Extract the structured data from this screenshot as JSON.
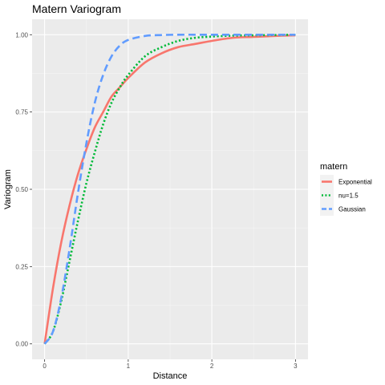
{
  "chart_data": {
    "type": "line",
    "title": "Matern Variogram",
    "xlabel": "Distance",
    "ylabel": "Variogram",
    "xlim": [
      -0.15,
      3.15
    ],
    "ylim": [
      -0.05,
      1.05
    ],
    "x_ticks": [
      {
        "value": 0,
        "label": "0"
      },
      {
        "value": 1,
        "label": "1"
      },
      {
        "value": 2,
        "label": "2"
      },
      {
        "value": 3,
        "label": "3"
      }
    ],
    "y_ticks": [
      {
        "value": 0,
        "label": "0.00"
      },
      {
        "value": 0.25,
        "label": "0.25"
      },
      {
        "value": 0.5,
        "label": "0.50"
      },
      {
        "value": 0.75,
        "label": "0.75"
      },
      {
        "value": 1,
        "label": "1.00"
      }
    ],
    "grid": true,
    "legend": {
      "title": "matern",
      "position": "right"
    },
    "x": [
      0,
      0.1,
      0.2,
      0.3,
      0.4,
      0.5,
      0.6,
      0.7,
      0.8,
      0.9,
      1.0,
      1.2,
      1.4,
      1.6,
      1.8,
      2.0,
      2.25,
      2.5,
      2.75,
      3.0
    ],
    "series": [
      {
        "name": "Exponential",
        "color": "#F8766D",
        "dash": "solid",
        "values": [
          0.0,
          0.18,
          0.33,
          0.45,
          0.55,
          0.63,
          0.7,
          0.75,
          0.8,
          0.83,
          0.86,
          0.91,
          0.94,
          0.96,
          0.97,
          0.98,
          0.99,
          0.993,
          0.996,
          0.998
        ]
      },
      {
        "name": "nu=1.5",
        "color": "#00BA38",
        "dash": "dotted",
        "values": [
          0.0,
          0.04,
          0.14,
          0.27,
          0.4,
          0.52,
          0.62,
          0.71,
          0.78,
          0.83,
          0.87,
          0.93,
          0.96,
          0.98,
          0.99,
          0.994,
          0.997,
          0.998,
          0.999,
          1.0
        ]
      },
      {
        "name": "Gaussian",
        "color": "#619CFF",
        "dash": "dashed",
        "values": [
          0.0,
          0.04,
          0.15,
          0.31,
          0.49,
          0.65,
          0.78,
          0.87,
          0.93,
          0.965,
          0.983,
          0.996,
          0.999,
          1.0,
          1.0,
          1.0,
          1.0,
          1.0,
          1.0,
          1.0
        ]
      }
    ]
  }
}
